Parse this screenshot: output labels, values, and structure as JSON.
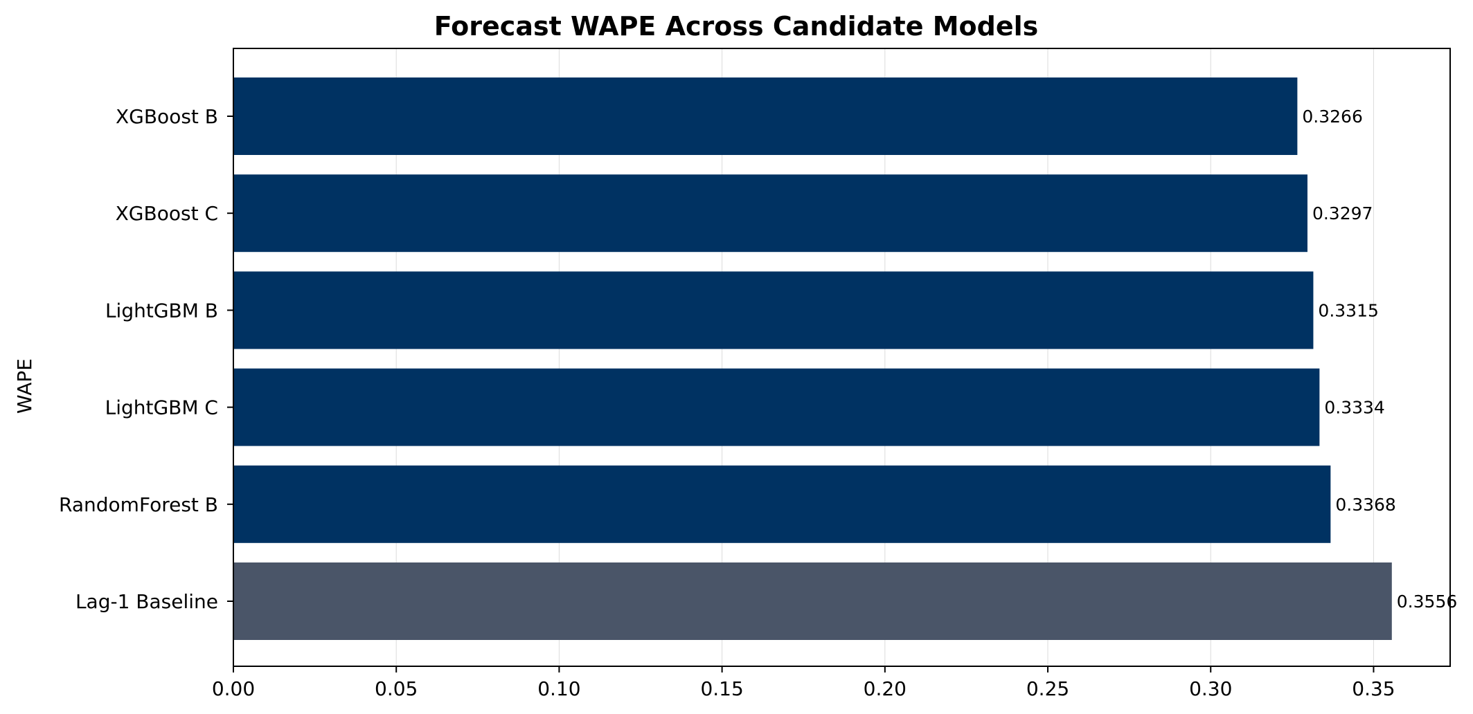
{
  "chart_data": {
    "type": "bar",
    "orientation": "horizontal",
    "title": "Forecast WAPE Across Candidate Models",
    "xlabel": "",
    "ylabel": "WAPE",
    "categories": [
      "XGBoost B",
      "XGBoost C",
      "LightGBM B",
      "LightGBM C",
      "RandomForest B",
      "Lag-1 Baseline"
    ],
    "values": [
      0.3266,
      0.3297,
      0.3315,
      0.3334,
      0.3368,
      0.3556
    ],
    "data_labels": [
      "0.3266",
      "0.3297",
      "0.3315",
      "0.3334",
      "0.3368",
      "0.3556"
    ],
    "bar_colors": [
      "#003262",
      "#003262",
      "#003262",
      "#003262",
      "#003262",
      "#4a5568"
    ],
    "xlim": [
      0,
      0.3735
    ],
    "xticks": [
      0.0,
      0.05,
      0.1,
      0.15,
      0.2,
      0.25,
      0.3,
      0.35
    ],
    "xtick_labels": [
      "0.00",
      "0.05",
      "0.10",
      "0.15",
      "0.20",
      "0.25",
      "0.30",
      "0.35"
    ],
    "grid": "vertical",
    "legend": "none"
  }
}
